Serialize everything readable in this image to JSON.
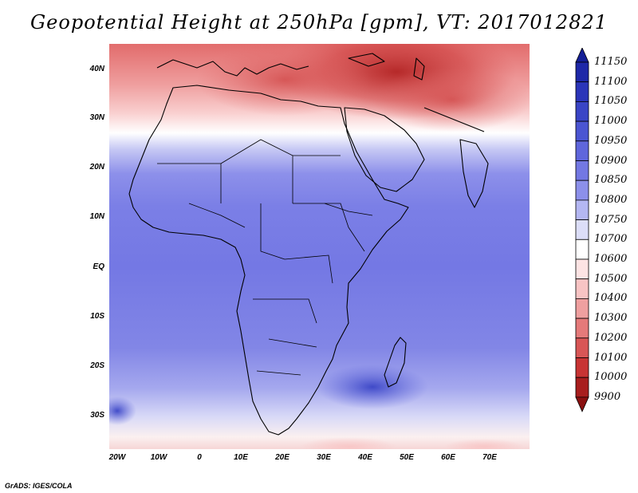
{
  "title": "Geopotential Height at 250hPa [gpm], VT: 2017012821",
  "credit": "GrADS: IGES/COLA",
  "lat_labels": [
    "40N",
    "30N",
    "20N",
    "10N",
    "EQ",
    "10S",
    "20S",
    "30S"
  ],
  "lon_labels": [
    "20W",
    "10W",
    "0",
    "10E",
    "20E",
    "30E",
    "40E",
    "50E",
    "60E",
    "70E"
  ],
  "colorbar": {
    "labels": [
      "11150",
      "11100",
      "11050",
      "11000",
      "10950",
      "10900",
      "10850",
      "10800",
      "10750",
      "10700",
      "10600",
      "10500",
      "10400",
      "10300",
      "10200",
      "10100",
      "10000",
      "9900"
    ],
    "colors": [
      "#141e96",
      "#1e28a8",
      "#2b35b9",
      "#3a45c6",
      "#4b55d2",
      "#5f66dc",
      "#7378e3",
      "#8c90ea",
      "#b4b7f2",
      "#dcdef8",
      "#ffffff",
      "#fde4e4",
      "#f8c4c4",
      "#efa0a0",
      "#e57a7a",
      "#d85656",
      "#c83434",
      "#a81e1e",
      "#8a1010"
    ]
  },
  "map": {
    "projection": "lat-lon",
    "lon_range": [
      -22,
      80
    ],
    "lat_range": [
      -37,
      45
    ],
    "variable": "geopotential height",
    "level": "250hPa",
    "units": "gpm",
    "valid_time": "2017012821"
  }
}
